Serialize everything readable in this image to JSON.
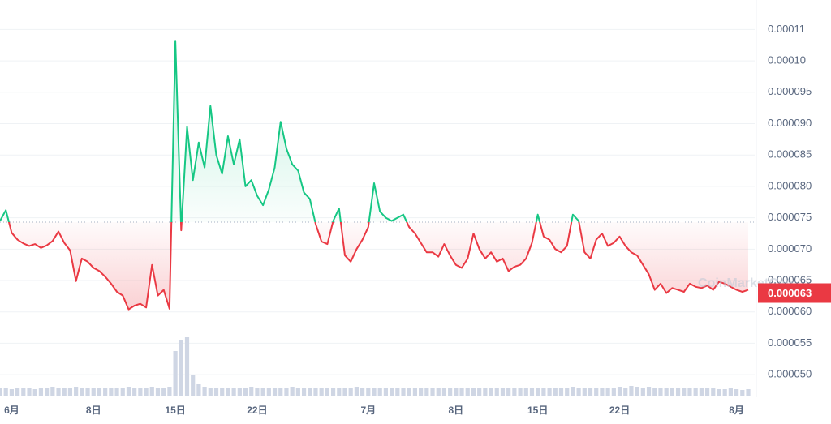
{
  "chart_data": {
    "type": "line",
    "categories": [
      null,
      null,
      "6月",
      null,
      null,
      null,
      null,
      null,
      null,
      null,
      null,
      null,
      null,
      null,
      null,
      null,
      "8日",
      null,
      null,
      null,
      null,
      null,
      null,
      null,
      null,
      null,
      null,
      null,
      null,
      null,
      "15日",
      null,
      null,
      null,
      null,
      null,
      null,
      null,
      null,
      null,
      null,
      null,
      null,
      null,
      "22日",
      null,
      null,
      null,
      null,
      null,
      null,
      null,
      null,
      null,
      null,
      null,
      null,
      null,
      null,
      null,
      null,
      null,
      null,
      "7月",
      null,
      null,
      null,
      null,
      null,
      null,
      null,
      null,
      null,
      null,
      null,
      null,
      null,
      null,
      "8日",
      null,
      null,
      null,
      null,
      null,
      null,
      null,
      null,
      null,
      null,
      null,
      null,
      null,
      "15日",
      null,
      null,
      null,
      null,
      null,
      null,
      null,
      null,
      null,
      null,
      null,
      null,
      null,
      "22日",
      null,
      null,
      null,
      null,
      null,
      null,
      null,
      null,
      null,
      null,
      null,
      null,
      null,
      null,
      null,
      null,
      null,
      null,
      null,
      "8月",
      null,
      null
    ],
    "values": [
      7.45e-05,
      7.62e-05,
      7.26e-05,
      7.15e-05,
      7.09e-05,
      7.05e-05,
      7.08e-05,
      7.02e-05,
      7.06e-05,
      7.13e-05,
      7.28e-05,
      7.1e-05,
      6.98e-05,
      6.49e-05,
      6.85e-05,
      6.8e-05,
      6.7e-05,
      6.65e-05,
      6.56e-05,
      6.45e-05,
      6.32e-05,
      6.26e-05,
      6.04e-05,
      6.1e-05,
      6.13e-05,
      6.07e-05,
      6.75e-05,
      6.26e-05,
      6.35e-05,
      6.05e-05,
      0.0001032,
      7.3e-05,
      8.95e-05,
      8.1e-05,
      8.7e-05,
      8.3e-05,
      9.28e-05,
      8.5e-05,
      8.2e-05,
      8.8e-05,
      8.35e-05,
      8.75e-05,
      8e-05,
      8.1e-05,
      7.85e-05,
      7.7e-05,
      7.95e-05,
      8.3e-05,
      9.03e-05,
      8.6e-05,
      8.35e-05,
      8.25e-05,
      7.9e-05,
      7.8e-05,
      7.4e-05,
      7.12e-05,
      7.08e-05,
      7.45e-05,
      7.65e-05,
      6.9e-05,
      6.8e-05,
      7e-05,
      7.15e-05,
      7.35e-05,
      8.05e-05,
      7.6e-05,
      7.5e-05,
      7.45e-05,
      7.5e-05,
      7.55e-05,
      7.35e-05,
      7.25e-05,
      7.1e-05,
      6.95e-05,
      6.95e-05,
      6.88e-05,
      7.08e-05,
      6.9e-05,
      6.75e-05,
      6.7e-05,
      6.85e-05,
      7.25e-05,
      7e-05,
      6.85e-05,
      6.95e-05,
      6.8e-05,
      6.85e-05,
      6.65e-05,
      6.72e-05,
      6.75e-05,
      6.85e-05,
      7.1e-05,
      7.55e-05,
      7.2e-05,
      7.15e-05,
      7e-05,
      6.95e-05,
      7.05e-05,
      7.55e-05,
      7.45e-05,
      6.95e-05,
      6.85e-05,
      7.15e-05,
      7.25e-05,
      7.05e-05,
      7.1e-05,
      7.2e-05,
      7.05e-05,
      6.95e-05,
      6.9e-05,
      6.75e-05,
      6.6e-05,
      6.35e-05,
      6.45e-05,
      6.3e-05,
      6.38e-05,
      6.35e-05,
      6.32e-05,
      6.45e-05,
      6.4e-05,
      6.38e-05,
      6.42e-05,
      6.35e-05,
      6.48e-05,
      6.45e-05,
      6.4e-05,
      6.35e-05,
      6.32e-05,
      6.35e-05
    ],
    "volume": [
      9,
      10,
      8,
      9,
      10,
      9,
      8,
      9,
      10,
      11,
      9,
      10,
      9,
      11,
      10,
      9,
      9,
      10,
      9,
      10,
      9,
      10,
      11,
      10,
      9,
      10,
      11,
      10,
      9,
      11,
      55,
      68,
      72,
      25,
      14,
      11,
      10,
      10,
      9,
      10,
      10,
      9,
      10,
      11,
      10,
      9,
      10,
      10,
      9,
      10,
      11,
      10,
      9,
      10,
      9,
      9,
      10,
      9,
      10,
      9,
      10,
      11,
      9,
      10,
      9,
      10,
      10,
      9,
      9,
      10,
      9,
      9,
      10,
      9,
      10,
      9,
      10,
      9,
      9,
      10,
      9,
      10,
      9,
      9,
      10,
      9,
      9,
      10,
      9,
      9,
      10,
      9,
      10,
      9,
      10,
      9,
      9,
      10,
      11,
      10,
      9,
      10,
      9,
      10,
      9,
      10,
      11,
      10,
      12,
      11,
      10,
      11,
      10,
      9,
      10,
      9,
      10,
      9,
      10,
      9,
      9,
      10,
      9,
      8,
      8,
      9,
      8,
      7,
      8
    ],
    "volume_color": "#cfd6e4",
    "baseline": 7.43e-05,
    "up_color": "#16c784",
    "down_color": "#ea3943",
    "current_price": 6.3e-05,
    "watermark": "CoinMarketCap",
    "ylim": [
      4.64e-05,
      0.0001097
    ],
    "yticks": [
      {
        "value": 5e-05,
        "label": "0.000050"
      },
      5.5e-05,
      {
        "value": 6e-05,
        "label": "0.000060"
      },
      6.5e-05,
      {
        "value": 7e-05,
        "label": "0.000070"
      },
      7.5e-05,
      {
        "value": 8e-05,
        "label": "0.000080"
      },
      8.5e-05,
      {
        "value": 9e-05,
        "label": "0.000090"
      },
      9.5e-05,
      {
        "value": 0.0001,
        "label": "0.00010"
      },
      {
        "value": 0.000105,
        "label": "0.00011"
      }
    ],
    "grid": true
  }
}
